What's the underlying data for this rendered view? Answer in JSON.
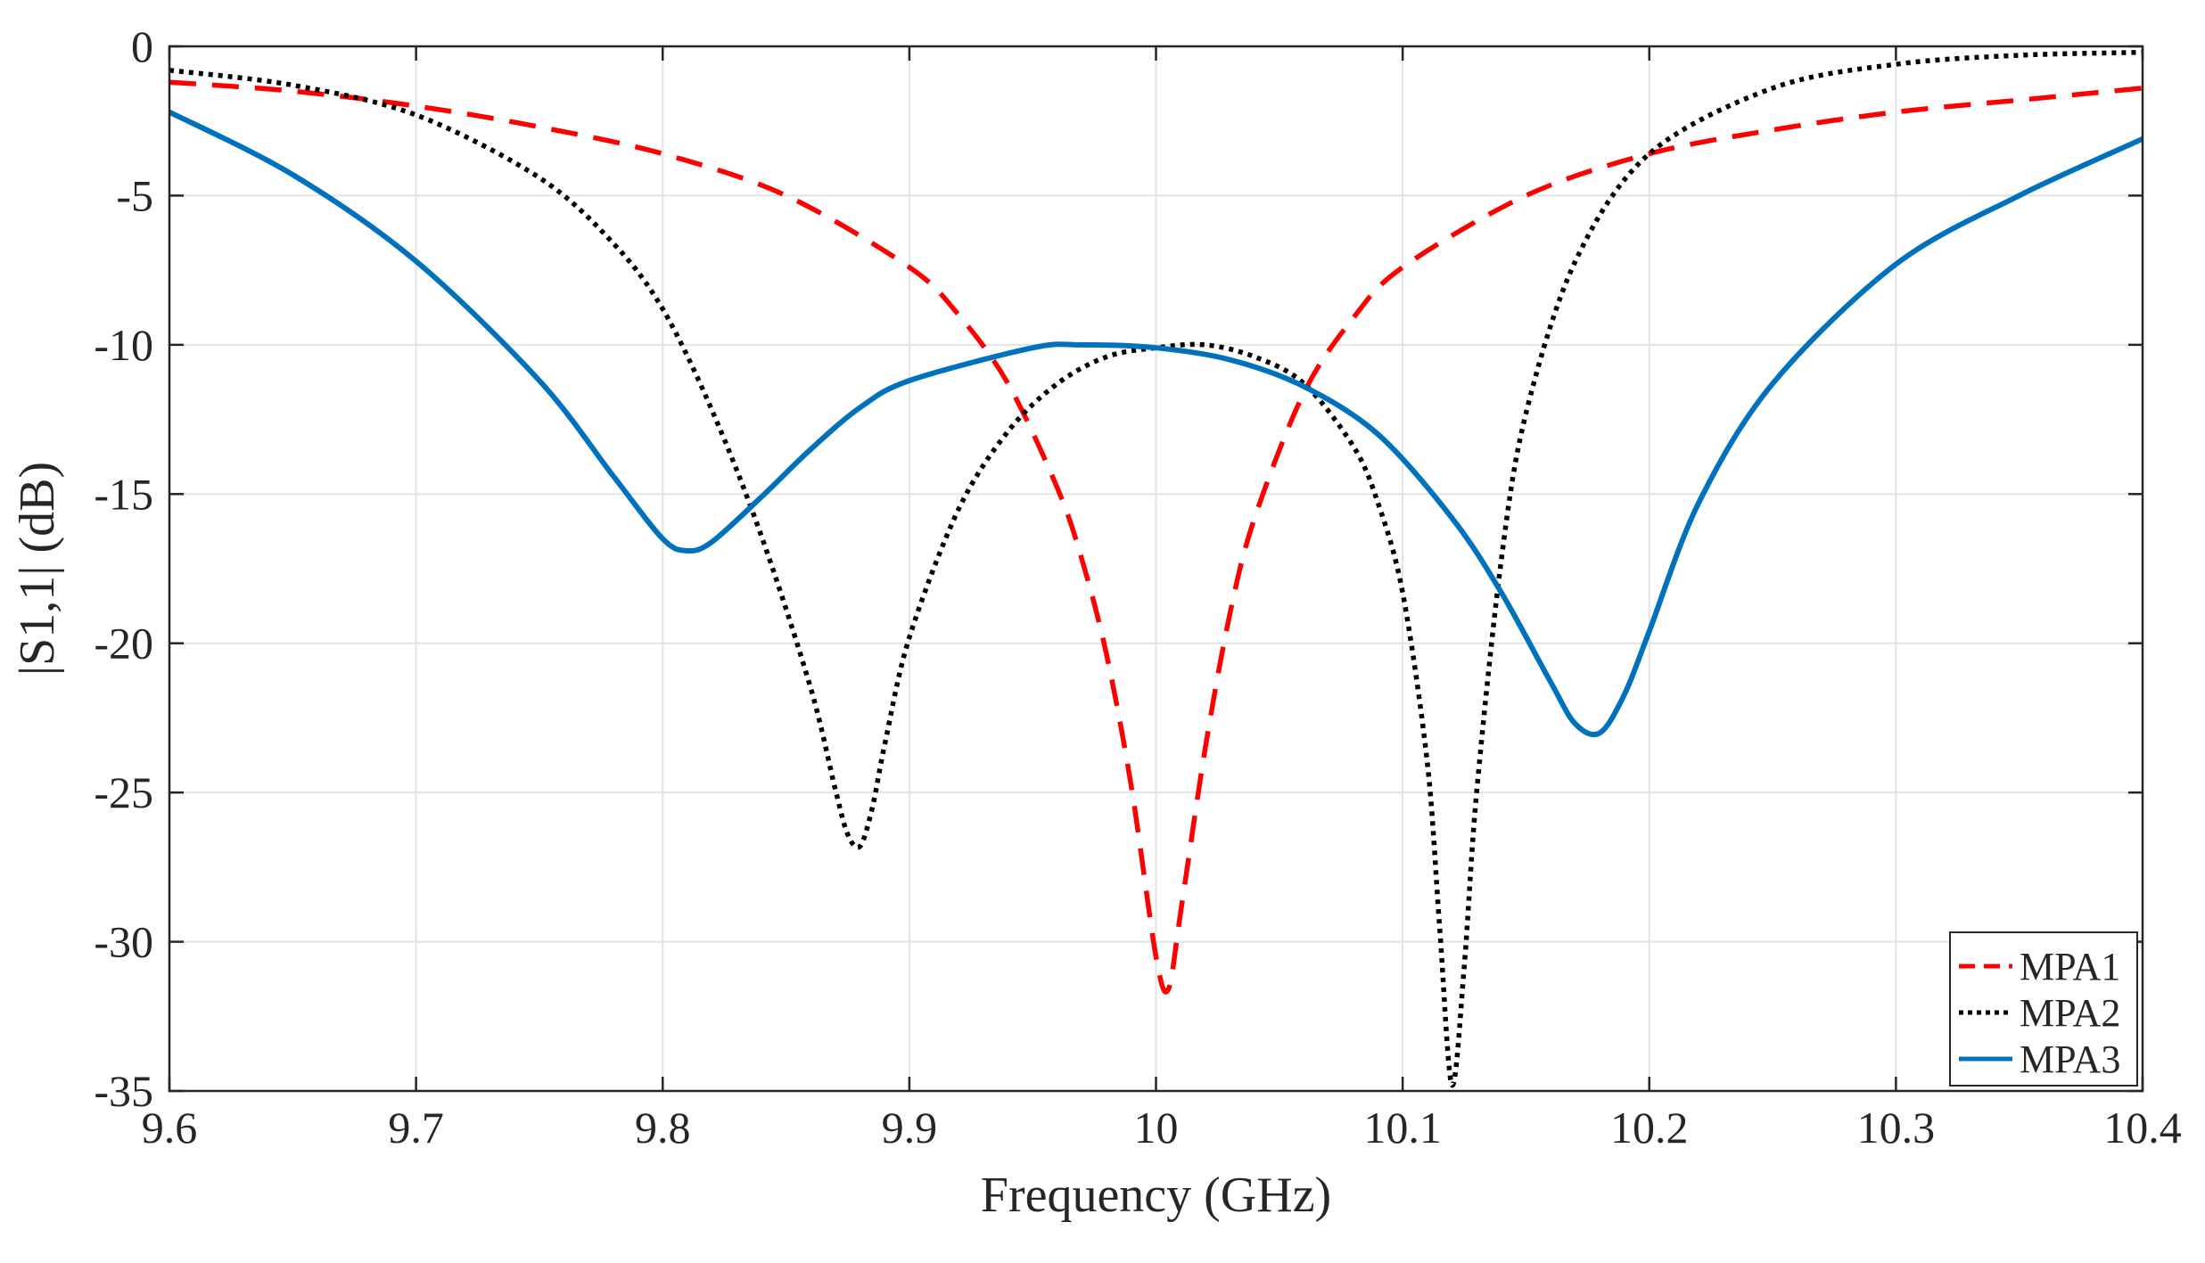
{
  "chart_data": {
    "type": "line",
    "xlabel": "Frequency (GHz)",
    "ylabel": "|S1,1| (dB)",
    "xlim": [
      9.6,
      10.4
    ],
    "ylim": [
      -35,
      0
    ],
    "xticks": [
      9.6,
      9.7,
      9.8,
      9.9,
      10.0,
      10.1,
      10.2,
      10.3,
      10.4
    ],
    "xtick_labels": [
      "9.6",
      "9.7",
      "9.8",
      "9.9",
      "10",
      "10.1",
      "10.2",
      "10.3",
      "10.4"
    ],
    "yticks": [
      0,
      -5,
      -10,
      -15,
      -20,
      -25,
      -30,
      -35
    ],
    "ytick_labels": [
      "0",
      "-5",
      "-10",
      "-15",
      "-20",
      "-25",
      "-30",
      "-35"
    ],
    "grid": true,
    "legend_position": "bottom-right",
    "series": [
      {
        "name": "MPA1",
        "color": "#ff0000",
        "style": "dashed",
        "x": [
          9.6,
          9.65,
          9.7,
          9.75,
          9.8,
          9.85,
          9.9,
          9.92,
          9.94,
          9.96,
          9.97,
          9.98,
          9.99,
          10.0,
          10.005,
          10.01,
          10.02,
          10.03,
          10.04,
          10.06,
          10.08,
          10.1,
          10.15,
          10.2,
          10.25,
          10.3,
          10.35,
          10.4
        ],
        "y": [
          -1.2,
          -1.5,
          -2.0,
          -2.7,
          -3.6,
          -5.0,
          -7.4,
          -9.0,
          -11.3,
          -14.8,
          -17.2,
          -20.4,
          -24.8,
          -30.5,
          -31.6,
          -29.0,
          -23.5,
          -19.0,
          -15.8,
          -11.6,
          -9.1,
          -7.4,
          -5.0,
          -3.6,
          -2.8,
          -2.2,
          -1.8,
          -1.4
        ]
      },
      {
        "name": "MPA2",
        "color": "#000000",
        "style": "dotted",
        "x": [
          9.6,
          9.65,
          9.7,
          9.75,
          9.78,
          9.8,
          9.82,
          9.84,
          9.86,
          9.87,
          9.875,
          9.88,
          9.885,
          9.89,
          9.9,
          9.92,
          9.94,
          9.96,
          9.98,
          10.0,
          10.02,
          10.04,
          10.06,
          10.08,
          10.09,
          10.1,
          10.11,
          10.115,
          10.12,
          10.125,
          10.13,
          10.14,
          10.15,
          10.17,
          10.2,
          10.25,
          10.3,
          10.35,
          10.4
        ],
        "y": [
          -0.8,
          -1.3,
          -2.3,
          -4.4,
          -6.6,
          -8.8,
          -12.2,
          -16.4,
          -21.5,
          -24.9,
          -26.4,
          -26.8,
          -25.5,
          -23.4,
          -19.8,
          -15.5,
          -12.9,
          -11.3,
          -10.4,
          -10.1,
          -10.0,
          -10.4,
          -11.3,
          -13.4,
          -15.3,
          -18.3,
          -24.0,
          -29.5,
          -34.8,
          -30.8,
          -25.0,
          -17.2,
          -12.3,
          -7.2,
          -3.6,
          -1.4,
          -0.6,
          -0.3,
          -0.2
        ]
      },
      {
        "name": "MPA3",
        "color": "#0072bd",
        "style": "solid",
        "x": [
          9.6,
          9.65,
          9.7,
          9.75,
          9.78,
          9.8,
          9.81,
          9.82,
          9.84,
          9.86,
          9.88,
          9.9,
          9.95,
          9.97,
          10.0,
          10.03,
          10.06,
          10.09,
          10.12,
          10.14,
          10.16,
          10.17,
          10.18,
          10.19,
          10.2,
          10.22,
          10.25,
          10.3,
          10.35,
          10.4
        ],
        "y": [
          -2.2,
          -4.3,
          -7.2,
          -11.2,
          -14.4,
          -16.5,
          -16.9,
          -16.6,
          -15.1,
          -13.5,
          -12.1,
          -11.2,
          -10.1,
          -10.0,
          -10.1,
          -10.5,
          -11.4,
          -13.0,
          -15.8,
          -18.3,
          -21.3,
          -22.7,
          -23.0,
          -21.7,
          -19.6,
          -15.3,
          -11.3,
          -7.3,
          -5.0,
          -3.1
        ]
      }
    ]
  }
}
